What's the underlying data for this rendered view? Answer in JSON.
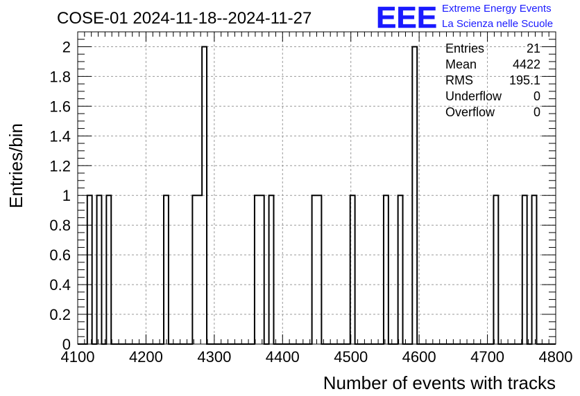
{
  "title": "COSE-01 2024-11-18--2024-11-27",
  "logo": {
    "text": "EEE",
    "line1": "Extreme Energy Events",
    "line2": "La Scienza nelle Scuole",
    "color": "#1a1aff"
  },
  "stats": [
    {
      "label": "Entries",
      "value": "21"
    },
    {
      "label": "Mean",
      "value": "4422"
    },
    {
      "label": "RMS",
      "value": "195.1"
    },
    {
      "label": "Underflow",
      "value": "0"
    },
    {
      "label": "Overflow",
      "value": "0"
    }
  ],
  "chart_data": {
    "type": "bar",
    "subtype": "histogram",
    "xlabel": "Number of events with tracks",
    "ylabel": "Entries/bin",
    "xlim": [
      4100,
      4800
    ],
    "ylim": [
      0,
      2.1
    ],
    "bin_width": 7,
    "bins": [
      {
        "x": 4114,
        "count": 1
      },
      {
        "x": 4128,
        "count": 1
      },
      {
        "x": 4142,
        "count": 1
      },
      {
        "x": 4226,
        "count": 1
      },
      {
        "x": 4268,
        "count": 1
      },
      {
        "x": 4275,
        "count": 1
      },
      {
        "x": 4282,
        "count": 2
      },
      {
        "x": 4359,
        "count": 1
      },
      {
        "x": 4366,
        "count": 1
      },
      {
        "x": 4380,
        "count": 1
      },
      {
        "x": 4443,
        "count": 1
      },
      {
        "x": 4450,
        "count": 1
      },
      {
        "x": 4499,
        "count": 1
      },
      {
        "x": 4548,
        "count": 1
      },
      {
        "x": 4569,
        "count": 1
      },
      {
        "x": 4590,
        "count": 2
      },
      {
        "x": 4709,
        "count": 1
      },
      {
        "x": 4751,
        "count": 1
      },
      {
        "x": 4765,
        "count": 1
      }
    ],
    "x_ticks": [
      4100,
      4200,
      4300,
      4400,
      4500,
      4600,
      4700,
      4800
    ],
    "y_ticks": [
      0,
      0.2,
      0.4,
      0.6,
      0.8,
      1,
      1.2,
      1.4,
      1.6,
      1.8,
      2
    ],
    "grid": true,
    "line_color": "#000000"
  }
}
